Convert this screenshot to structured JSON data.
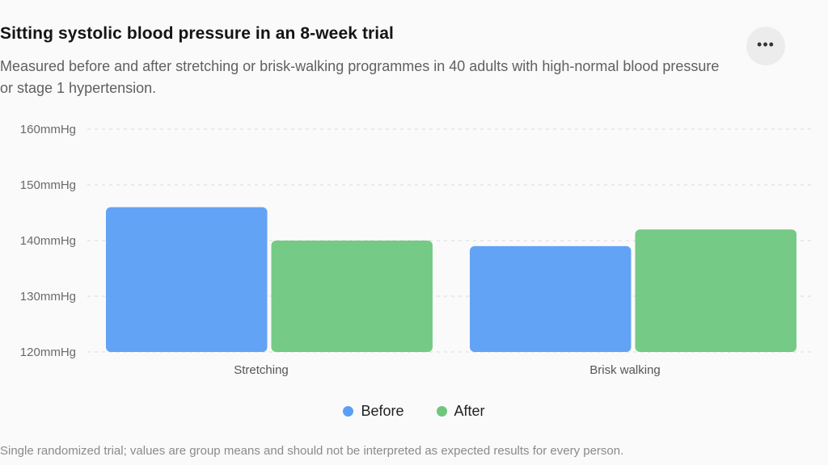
{
  "header": {
    "title": "Sitting systolic blood pressure in an 8-week trial",
    "subtitle": "Measured before and after stretching or brisk-walking programmes in 40 adults with high-normal blood pressure or stage 1 hypertension.",
    "more_icon": "more-horizontal-icon"
  },
  "chart_data": {
    "type": "bar",
    "categories": [
      "Stretching",
      "Brisk walking"
    ],
    "series": [
      {
        "name": "Before",
        "values": [
          146,
          139
        ],
        "color": "#5b9ef6"
      },
      {
        "name": "After",
        "values": [
          140,
          142
        ],
        "color": "#6ec77e"
      }
    ],
    "yticks": [
      120,
      130,
      140,
      150,
      160
    ],
    "ytick_labels": [
      "120mmHg",
      "130mmHg",
      "140mmHg",
      "150mmHg",
      "160mmHg"
    ],
    "ylim": [
      120,
      160
    ],
    "grid": true,
    "legend_position": "bottom-center"
  },
  "footnote": "Single randomized trial; values are group means and should not be interpreted as expected results for every person."
}
